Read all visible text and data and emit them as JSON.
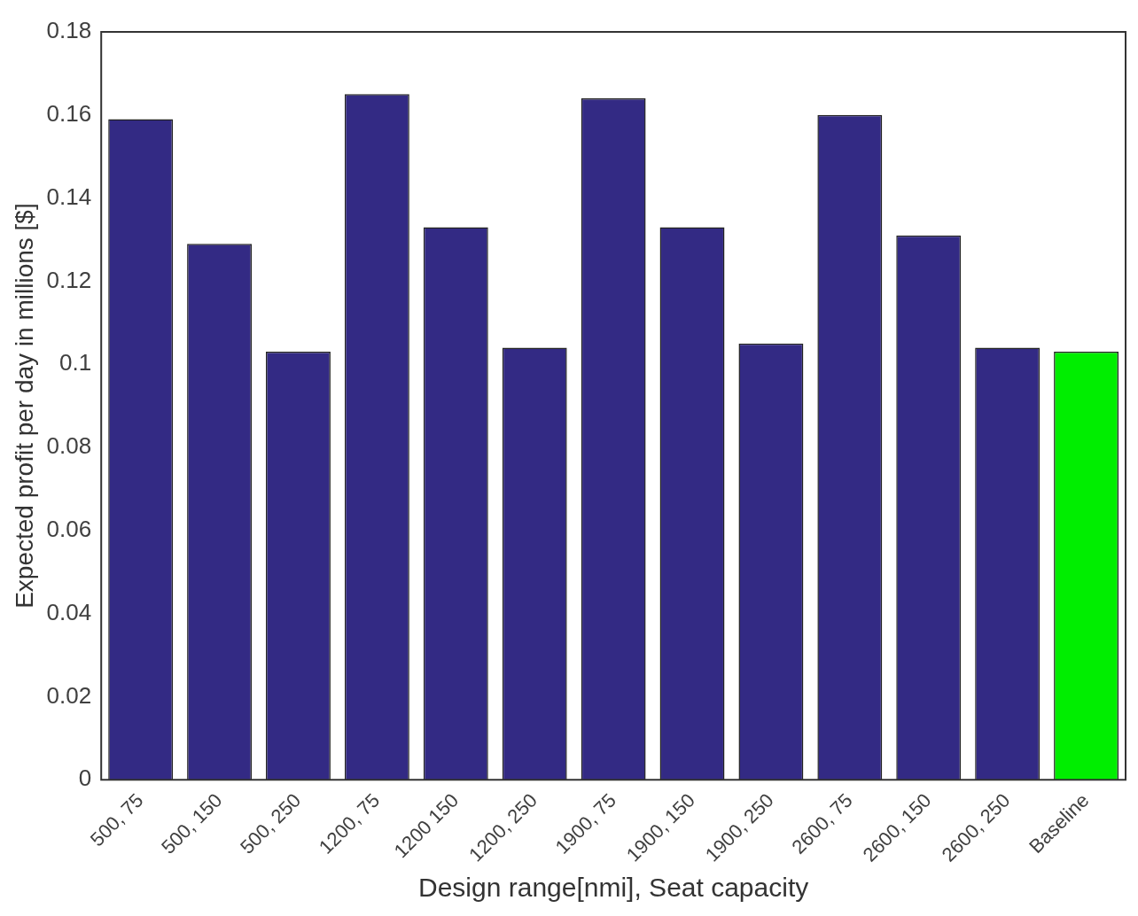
{
  "chart_data": {
    "type": "bar",
    "xlabel": "Design range[nmi], Seat capacity",
    "ylabel": "Expected profit per day in millions [$]",
    "categories": [
      "500, 75",
      "500, 150",
      "500, 250",
      "1200, 75",
      "1200 150",
      "1200, 250",
      "1900, 75",
      "1900, 150",
      "1900, 250",
      "2600, 75",
      "2600, 150",
      "2600, 250",
      "Baseline"
    ],
    "values": [
      0.159,
      0.129,
      0.103,
      0.165,
      0.133,
      0.104,
      0.164,
      0.133,
      0.105,
      0.16,
      0.131,
      0.104,
      0.103
    ],
    "colors": [
      "#332a84",
      "#332a84",
      "#332a84",
      "#332a84",
      "#332a84",
      "#332a84",
      "#332a84",
      "#332a84",
      "#332a84",
      "#332a84",
      "#332a84",
      "#332a84",
      "#00ee00"
    ],
    "ylim": [
      0,
      0.18
    ],
    "yticks": [
      0,
      0.02,
      0.04,
      0.06,
      0.08,
      0.1,
      0.12,
      0.14,
      0.16,
      0.18
    ],
    "grid": false,
    "legend": false
  }
}
